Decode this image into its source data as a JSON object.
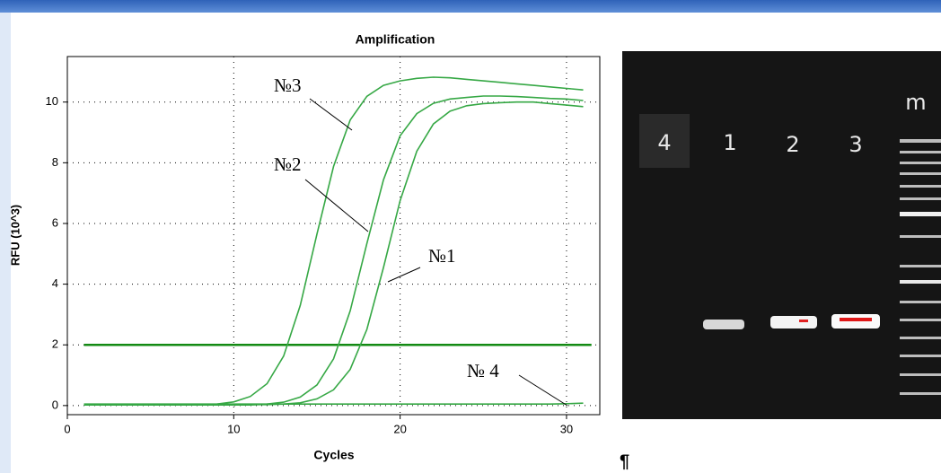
{
  "chart_data": {
    "type": "line",
    "title": "Amplification",
    "x_label": "Cycles",
    "y_label": "RFU (10^3)",
    "x": [
      1,
      2,
      3,
      4,
      5,
      6,
      7,
      8,
      9,
      10,
      11,
      12,
      13,
      14,
      15,
      16,
      17,
      18,
      19,
      20,
      21,
      22,
      23,
      24,
      25,
      26,
      27,
      28,
      29,
      30,
      31
    ],
    "series": [
      {
        "name": "№1",
        "color": "#36a845",
        "values": [
          0.03,
          0.03,
          0.03,
          0.03,
          0.03,
          0.03,
          0.03,
          0.03,
          0.03,
          0.03,
          0.03,
          0.03,
          0.05,
          0.09,
          0.22,
          0.52,
          1.19,
          2.51,
          4.55,
          6.75,
          8.38,
          9.28,
          9.7,
          9.88,
          9.95,
          9.98,
          10.0,
          10.0,
          9.95,
          9.9,
          9.85
        ]
      },
      {
        "name": "№2",
        "color": "#36a845",
        "values": [
          0.02,
          0.02,
          0.02,
          0.02,
          0.02,
          0.02,
          0.02,
          0.02,
          0.02,
          0.02,
          0.02,
          0.05,
          0.11,
          0.28,
          0.68,
          1.54,
          3.12,
          5.34,
          7.44,
          8.89,
          9.62,
          9.96,
          10.1,
          10.15,
          10.2,
          10.2,
          10.18,
          10.15,
          10.12,
          10.1,
          10.05
        ]
      },
      {
        "name": "№3",
        "color": "#36a845",
        "values": [
          0.02,
          0.02,
          0.02,
          0.02,
          0.02,
          0.02,
          0.02,
          0.02,
          0.05,
          0.12,
          0.3,
          0.72,
          1.63,
          3.3,
          5.65,
          7.88,
          9.41,
          10.19,
          10.55,
          10.7,
          10.78,
          10.82,
          10.8,
          10.75,
          10.7,
          10.65,
          10.6,
          10.55,
          10.5,
          10.45,
          10.4
        ]
      },
      {
        "name": "№ 4",
        "color": "#36a845",
        "values": [
          0.05,
          0.05,
          0.05,
          0.05,
          0.05,
          0.05,
          0.05,
          0.05,
          0.05,
          0.05,
          0.05,
          0.05,
          0.05,
          0.05,
          0.05,
          0.05,
          0.05,
          0.05,
          0.05,
          0.05,
          0.05,
          0.05,
          0.05,
          0.05,
          0.05,
          0.05,
          0.05,
          0.05,
          0.05,
          0.06,
          0.08
        ]
      }
    ],
    "threshold": 2,
    "threshold_color": "#138a13",
    "xlim": [
      0,
      32
    ],
    "ylim": [
      -0.3,
      11.5
    ],
    "xticks": [
      0,
      10,
      20,
      30
    ],
    "yticks": [
      0,
      2,
      4,
      6,
      8,
      10
    ],
    "grid": true
  },
  "gel": {
    "lane_labels": [
      "4",
      "1",
      "2",
      "3",
      "m"
    ]
  },
  "paragraph_mark": "¶"
}
